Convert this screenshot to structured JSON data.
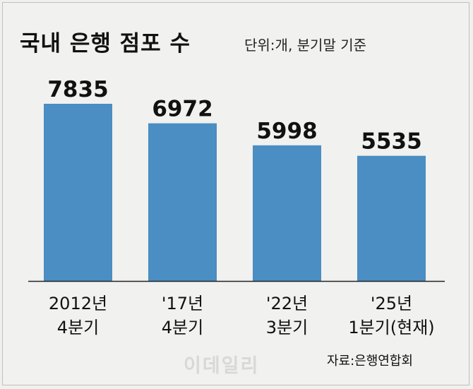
{
  "header": {
    "title": "국내 은행 점포 수",
    "unit_note": "단위:개, 분기말 기준"
  },
  "footer": {
    "source": "자료:은행연합회",
    "watermark": "이데일리"
  },
  "colors": {
    "bar": "#4a8ec3",
    "background": "#f0f0ee",
    "text": "#111111"
  },
  "chart_data": {
    "type": "bar",
    "title": "국내 은행 점포 수",
    "unit": "개",
    "categories": [
      [
        "2012년",
        "4분기"
      ],
      [
        "'17년",
        "4분기"
      ],
      [
        "'22년",
        "3분기"
      ],
      [
        "'25년",
        "1분기(현재)"
      ]
    ],
    "values": [
      7835,
      6972,
      5998,
      5535
    ],
    "data_labels": [
      "7835",
      "6972",
      "5998",
      "5535"
    ],
    "xlabel": "",
    "ylabel": "",
    "ylim": [
      0,
      7835
    ],
    "grid": false,
    "legend": "none"
  }
}
